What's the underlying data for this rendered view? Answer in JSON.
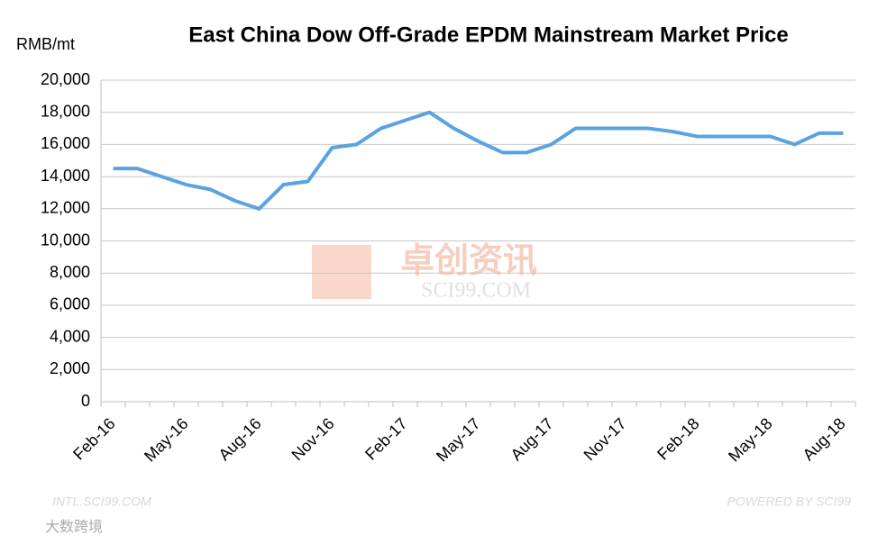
{
  "chart_data": {
    "type": "line",
    "title": "East China Dow Off-Grade EPDM Mainstream Market Price",
    "y_axis_label": "RMB/mt",
    "categories": [
      "Feb-16",
      null,
      null,
      "May-16",
      null,
      null,
      "Aug-16",
      null,
      null,
      "Nov-16",
      null,
      null,
      "Feb-17",
      null,
      null,
      "May-17",
      null,
      null,
      "Aug-17",
      null,
      null,
      "Nov-17",
      null,
      null,
      "Feb-18",
      null,
      null,
      "May-18",
      null,
      null,
      "Aug-18"
    ],
    "series": [
      {
        "name": "East China Dow Off-Grade EPDM",
        "color": "#5ba3e0",
        "values": [
          14500,
          14500,
          14000,
          13500,
          13200,
          12500,
          12000,
          13500,
          13700,
          15800,
          16000,
          17000,
          17500,
          18000,
          17000,
          16200,
          15500,
          15500,
          16000,
          17000,
          17000,
          17000,
          17000,
          16800,
          16500,
          16500,
          16500,
          16500,
          16000,
          16700,
          16700
        ]
      }
    ],
    "ylim": [
      0,
      20000
    ],
    "yticks": [
      0,
      {
        "value": 2000,
        "label": "2,000"
      },
      {
        "value": 4000,
        "label": "4,000"
      },
      {
        "value": 6000,
        "label": "6,000"
      },
      {
        "value": 8000,
        "label": "8,000"
      },
      {
        "value": 10000,
        "label": "10,000"
      },
      {
        "value": 12000,
        "label": "12,000"
      },
      {
        "value": 14000,
        "label": "14,000"
      },
      {
        "value": 16000,
        "label": "16,000"
      },
      {
        "value": 18000,
        "label": "18,000"
      },
      {
        "value": 20000,
        "label": "20,000"
      }
    ],
    "grid": true,
    "watermarks": [
      "卓创资讯",
      "SCI99.COM",
      "INTL.SCI99.COM",
      "POWERED BY SCI99",
      "大数跨境"
    ]
  }
}
